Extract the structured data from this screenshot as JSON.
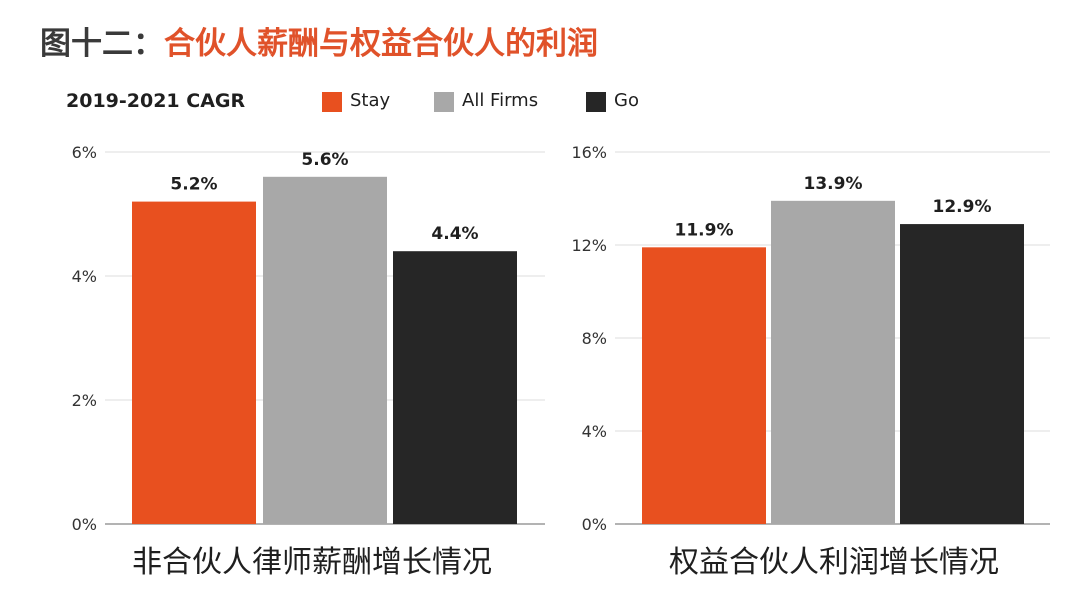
{
  "figure": {
    "title_prefix": "图十二：",
    "title_main": "合伙人薪酬与权益合伙人的利润"
  },
  "legend": {
    "cagr_label": "2019-2021 CAGR",
    "items": [
      {
        "label": "Stay",
        "color": "#e8501f"
      },
      {
        "label": "All Firms",
        "color": "#a8a8a8"
      },
      {
        "label": "Go",
        "color": "#262626"
      }
    ]
  },
  "chart_data": [
    {
      "type": "bar",
      "title": "非合伙人律师薪酬增长情况",
      "categories": [
        "Stay",
        "All Firms",
        "Go"
      ],
      "values": [
        5.2,
        5.6,
        4.4
      ],
      "value_labels": [
        "5.2%",
        "5.6%",
        "4.4%"
      ],
      "colors": [
        "#e8501f",
        "#a8a8a8",
        "#262626"
      ],
      "ylim": [
        0,
        6
      ],
      "yticks": [
        0,
        2,
        4,
        6
      ],
      "ytick_labels": [
        "0%",
        "2%",
        "4%",
        "6%"
      ],
      "grid": true
    },
    {
      "type": "bar",
      "title": "权益合伙人利润增长情况",
      "categories": [
        "Stay",
        "All Firms",
        "Go"
      ],
      "values": [
        11.9,
        13.9,
        12.9
      ],
      "value_labels": [
        "11.9%",
        "13.9%",
        "12.9%"
      ],
      "colors": [
        "#e8501f",
        "#a8a8a8",
        "#262626"
      ],
      "ylim": [
        0,
        16
      ],
      "yticks": [
        0,
        4,
        8,
        12,
        16
      ],
      "ytick_labels": [
        "0%",
        "4%",
        "8%",
        "12%",
        "16%"
      ],
      "grid": true
    }
  ]
}
